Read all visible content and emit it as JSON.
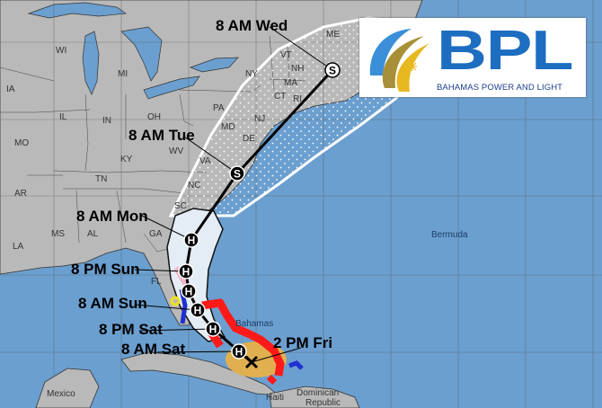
{
  "map": {
    "colors": {
      "land": "#b9b9b9",
      "ocean": "#6b9fcf",
      "cone": "#ffffff",
      "hurricane_warning": "#ff1a1a",
      "tropical_storm_watch": "#e0b050",
      "tropical_storm_warning": "#1f2fd0",
      "hurricane_watch": "#f2b6c8"
    },
    "forecast_times": [
      {
        "label": "2 PM Fri",
        "marker": "X"
      },
      {
        "label": "8 AM Sat",
        "marker": "H"
      },
      {
        "label": "8 PM Sat",
        "marker": "H"
      },
      {
        "label": "8 AM Sun",
        "marker": "H"
      },
      {
        "label": "8 PM Sun",
        "marker": "H"
      },
      {
        "label": "8 AM Mon",
        "marker": "H"
      },
      {
        "label": "8 AM Tue",
        "marker": "S"
      },
      {
        "label": "8 AM Wed",
        "marker": "S"
      }
    ],
    "extra_markers": [
      "H"
    ],
    "states": [
      "WI",
      "MI",
      "IA",
      "IL",
      "IN",
      "OH",
      "PA",
      "NY",
      "VT",
      "NH",
      "ME",
      "MA",
      "CT",
      "RI",
      "NJ",
      "MD",
      "DE",
      "WV",
      "VA",
      "KY",
      "TN",
      "MO",
      "AR",
      "NC",
      "SC",
      "GA",
      "AL",
      "MS",
      "LA",
      "FL"
    ],
    "places": {
      "bermuda": "Bermuda",
      "bahamas": "Bahamas",
      "mexico": "Mexico",
      "haiti": "Haiti",
      "dominican": "Dominican",
      "republic": "Republic"
    }
  },
  "logo": {
    "name": "BPL",
    "subtitle": "BAHAMAS POWER AND LIGHT",
    "icon": "sun-swoosh-icon",
    "colors": {
      "blue": "#1d6dc0",
      "gold": "#e8b820"
    }
  }
}
